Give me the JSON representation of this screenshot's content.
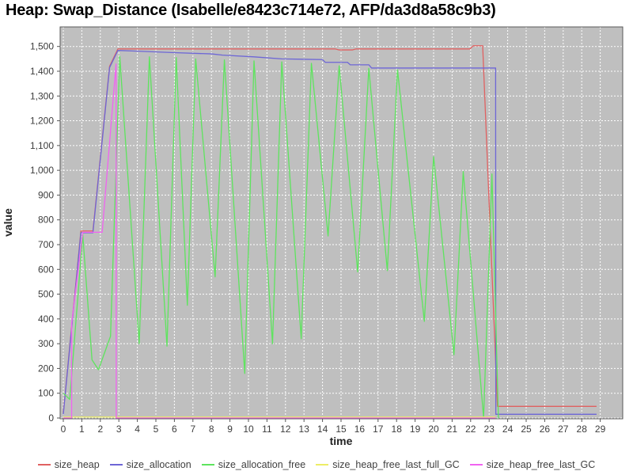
{
  "title": "Heap: Swap_Distance (Isabelle/e8423c714e72, AFP/da3d8a58c9b3)",
  "axes": {
    "x_label": "time",
    "y_label": "value",
    "x_ticks": [
      "0",
      "1",
      "2",
      "3",
      "4",
      "5",
      "6",
      "7",
      "8",
      "9",
      "10",
      "11",
      "12",
      "13",
      "14",
      "15",
      "16",
      "17",
      "18",
      "19",
      "20",
      "21",
      "22",
      "23",
      "24",
      "25",
      "26",
      "27",
      "28",
      "29"
    ],
    "y_ticks": [
      "0",
      "100",
      "200",
      "300",
      "400",
      "500",
      "600",
      "700",
      "800",
      "900",
      "1,000",
      "1,100",
      "1,200",
      "1,300",
      "1,400",
      "1,500"
    ]
  },
  "plot": {
    "background": "#bfbfbf",
    "gridline": "#ffffff",
    "border": "#5a5a5a",
    "tick_color": "#555555"
  },
  "chart_data": {
    "type": "line",
    "title": "Heap: Swap_Distance (Isabelle/e8423c714e72, AFP/da3d8a58c9b3)",
    "xlabel": "time",
    "ylabel": "value",
    "xlim": [
      0,
      29
    ],
    "ylim": [
      0,
      1500
    ],
    "grid": true,
    "legend_position": "bottom",
    "series": [
      {
        "name": "size_heap",
        "color": "#e06161",
        "points": [
          [
            0,
            20
          ],
          [
            0.95,
            755
          ],
          [
            1.6,
            755
          ],
          [
            2.5,
            1420
          ],
          [
            2.95,
            1490
          ],
          [
            14.7,
            1490
          ],
          [
            14.9,
            1486
          ],
          [
            15.6,
            1486
          ],
          [
            15.8,
            1490
          ],
          [
            21.95,
            1490
          ],
          [
            22.15,
            1503
          ],
          [
            22.65,
            1503
          ],
          [
            23.45,
            47
          ],
          [
            28.8,
            47
          ]
        ]
      },
      {
        "name": "size_allocation",
        "color": "#6d66d6",
        "points": [
          [
            0,
            15
          ],
          [
            0.95,
            748
          ],
          [
            1.6,
            748
          ],
          [
            2.5,
            1415
          ],
          [
            2.95,
            1484
          ],
          [
            4,
            1481
          ],
          [
            6,
            1475
          ],
          [
            8,
            1470
          ],
          [
            8.6,
            1465
          ],
          [
            10.3,
            1458
          ],
          [
            11.8,
            1450
          ],
          [
            14,
            1447
          ],
          [
            14.15,
            1436
          ],
          [
            15.35,
            1436
          ],
          [
            15.5,
            1426
          ],
          [
            16.5,
            1426
          ],
          [
            16.65,
            1413
          ],
          [
            23.35,
            1413
          ],
          [
            23.36,
            15
          ],
          [
            28.8,
            15
          ]
        ]
      },
      {
        "name": "size_allocation_free",
        "color": "#5ee45e",
        "points": [
          [
            0,
            100
          ],
          [
            0.35,
            75
          ],
          [
            1.05,
            740
          ],
          [
            1.55,
            235
          ],
          [
            1.9,
            195
          ],
          [
            2.55,
            330
          ],
          [
            3.05,
            1460
          ],
          [
            4.1,
            300
          ],
          [
            4.65,
            1458
          ],
          [
            5.6,
            290
          ],
          [
            6.1,
            1455
          ],
          [
            6.7,
            455
          ],
          [
            7.15,
            1450
          ],
          [
            8.2,
            570
          ],
          [
            8.7,
            1446
          ],
          [
            9.8,
            180
          ],
          [
            10.3,
            1442
          ],
          [
            11.3,
            300
          ],
          [
            11.8,
            1438
          ],
          [
            12.85,
            320
          ],
          [
            13.4,
            1432
          ],
          [
            14.3,
            735
          ],
          [
            14.9,
            1422
          ],
          [
            15.9,
            590
          ],
          [
            16.5,
            1412
          ],
          [
            17.5,
            595
          ],
          [
            18.05,
            1406
          ],
          [
            19.5,
            390
          ],
          [
            20,
            1055
          ],
          [
            21.1,
            255
          ],
          [
            21.6,
            995
          ],
          [
            22.7,
            0
          ],
          [
            23.15,
            985
          ],
          [
            23.5,
            0
          ]
        ]
      },
      {
        "name": "size_heap_free_last_full_GC",
        "color": "#eded66",
        "points": [
          [
            0,
            4
          ],
          [
            23.35,
            4
          ]
        ]
      },
      {
        "name": "size_heap_free_last_GC",
        "color": "#f163f1",
        "points": [
          [
            0,
            0
          ],
          [
            0.45,
            0
          ],
          [
            0.45,
            380
          ],
          [
            1.05,
            750
          ],
          [
            2.1,
            750
          ],
          [
            2.85,
            1430
          ],
          [
            2.86,
            0
          ],
          [
            23.35,
            0
          ]
        ]
      }
    ]
  }
}
